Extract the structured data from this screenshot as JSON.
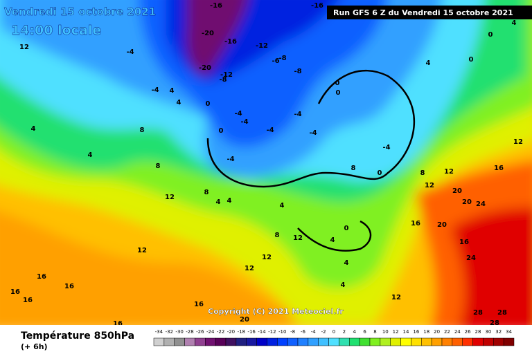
{
  "header": {
    "date": "Vendredi 15 octobre 2021",
    "time": "14:00 locale",
    "run": "Run GFS 6 Z du Vendredi 15 octobre 2021"
  },
  "footer": {
    "title": "Température 850hPa",
    "step": "(+ 6h)",
    "copyright": "Copyright (C) 2021 Meteociel.fr"
  },
  "legend": {
    "values": [
      -34,
      -32,
      -30,
      -28,
      -26,
      -24,
      -22,
      -20,
      -18,
      -16,
      -14,
      -12,
      -10,
      -8,
      -6,
      -4,
      -2,
      0,
      2,
      4,
      6,
      8,
      10,
      12,
      14,
      16,
      18,
      20,
      22,
      24,
      26,
      28,
      30,
      32,
      34
    ],
    "colors": [
      "#d0d0d0",
      "#b0b0b0",
      "#909090",
      "#b080b0",
      "#904090",
      "#701070",
      "#580058",
      "#401060",
      "#202080",
      "#1818a0",
      "#0000c8",
      "#0020e0",
      "#0040ff",
      "#1060ff",
      "#2080ff",
      "#30a0ff",
      "#40c0ff",
      "#50e0ff",
      "#30e0b0",
      "#20e070",
      "#40e030",
      "#80f020",
      "#b0f020",
      "#e0f000",
      "#ffff00",
      "#ffe000",
      "#ffc000",
      "#ffa000",
      "#ff8000",
      "#ff6000",
      "#ff3000",
      "#e00000",
      "#c00000",
      "#a00000",
      "#800000"
    ]
  },
  "contour_labels": [
    "-16",
    "-16",
    "-20",
    "-16",
    "-12",
    "-20",
    "-12",
    "-8",
    "-6",
    "-8",
    "-8",
    "-4",
    "-4",
    "4",
    "4",
    "0",
    "-4",
    "-4",
    "-4",
    "-4",
    "0",
    "-4",
    "8",
    "4",
    "4",
    "8",
    "12",
    "0",
    "0",
    "-4",
    "0",
    "-4",
    "4",
    "0",
    "0",
    "4",
    "8",
    "4",
    "4",
    "4",
    "12",
    "12",
    "12",
    "16",
    "16",
    "16",
    "16",
    "16",
    "16",
    "20",
    "12",
    "8",
    "4",
    "4",
    "4",
    "0",
    "8",
    "12",
    "16",
    "20",
    "20",
    "24",
    "16",
    "20",
    "16",
    "24",
    "12",
    "28",
    "28",
    "28",
    "12",
    "12",
    "8",
    "12"
  ]
}
